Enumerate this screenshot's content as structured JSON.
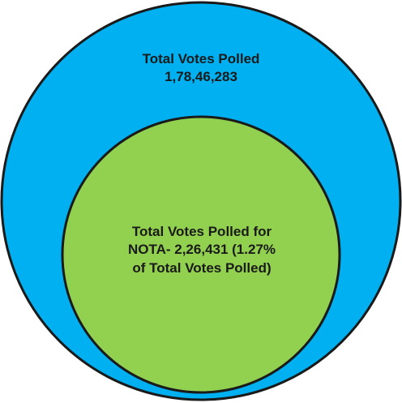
{
  "diagram": {
    "outer_circle": {
      "title": "Total Votes Polled",
      "value": "1,78,46,283",
      "color": "#00b0f0"
    },
    "inner_circle": {
      "line1": "Total Votes Polled for",
      "line2": "NOTA- 2,26,431 (1.27%",
      "line3": "of Total Votes Polled)",
      "color": "#92d050"
    },
    "outline_color": "#1a1a1a"
  }
}
